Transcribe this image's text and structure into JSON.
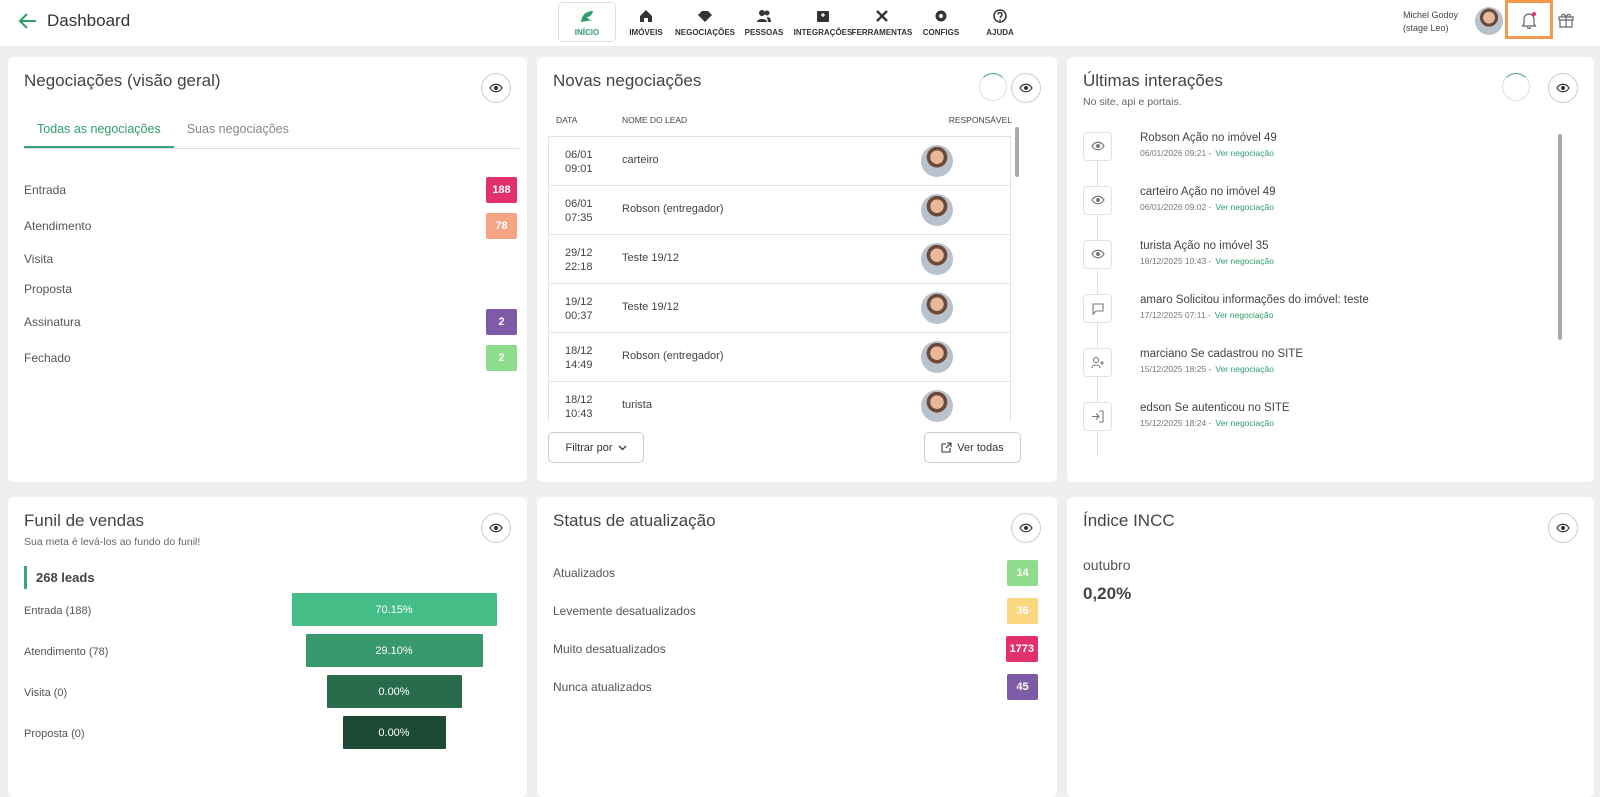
{
  "header": {
    "title": "Dashboard",
    "nav": [
      "INÍCIO",
      "IMÓVEIS",
      "NEGOCIAÇÕES",
      "PESSOAS",
      "INTEGRAÇÕES",
      "FERRAMENTAS",
      "CONFIGS",
      "AJUDA"
    ],
    "user_name": "Michel Godoy",
    "user_stage": "(stage Leo)"
  },
  "negotiations_overview": {
    "title": "Negociações (visão geral)",
    "tabs": [
      "Todas as negociações",
      "Suas negociações"
    ],
    "stages": [
      {
        "label": "Entrada",
        "count": 188,
        "color": "#e2306c"
      },
      {
        "label": "Atendimento",
        "count": 78,
        "color": "#f5a583"
      },
      {
        "label": "Visita"
      },
      {
        "label": "Proposta"
      },
      {
        "label": "Assinatura",
        "count": 2,
        "color": "#7d5ba6"
      },
      {
        "label": "Fechado",
        "count": 2,
        "color": "#8fdc8c"
      }
    ]
  },
  "new_negotiations": {
    "title": "Novas negociações",
    "columns": [
      "DATA",
      "NOME DO LEAD",
      "RESPONSÁVEL"
    ],
    "rows": [
      {
        "date": "06/01",
        "time": "09:01",
        "lead": "carteiro"
      },
      {
        "date": "06/01",
        "time": "07:35",
        "lead": "Robson (entregador)"
      },
      {
        "date": "29/12",
        "time": "22:18",
        "lead": "Teste 19/12"
      },
      {
        "date": "19/12",
        "time": "00:37",
        "lead": "Teste 19/12"
      },
      {
        "date": "18/12",
        "time": "14:49",
        "lead": "Robson (entregador)"
      },
      {
        "date": "18/12",
        "time": "10:43",
        "lead": "turista"
      }
    ],
    "filter_button": "Filtrar por",
    "see_all_button": "Ver todas"
  },
  "last_interactions": {
    "title": "Últimas interações",
    "subtitle": "No site, api e portais.",
    "items": [
      {
        "icon": "eye",
        "text": "Robson Ação no imóvel 49",
        "meta": "06/01/2026 09:21 -",
        "link": "Ver negociação"
      },
      {
        "icon": "eye",
        "text": "carteiro Ação no imóvel 49",
        "meta": "06/01/2026 09:02 -",
        "link": "Ver negociação"
      },
      {
        "icon": "eye",
        "text": "turista Ação no imóvel 35",
        "meta": "18/12/2025 10:43 -",
        "link": "Ver negociação"
      },
      {
        "icon": "chat",
        "text": "amaro Solicitou informações do imóvel: teste",
        "meta": "17/12/2025 07:11 -",
        "link": "Ver negociação"
      },
      {
        "icon": "user",
        "text": "marciano Se cadastrou no SITE",
        "meta": "15/12/2025 18:25 -",
        "link": "Ver negociação"
      },
      {
        "icon": "login",
        "text": "edson Se autenticou no SITE",
        "meta": "15/12/2025 18:24 -",
        "link": "Ver negociação"
      }
    ]
  },
  "sales_funnel": {
    "title": "Funil de vendas",
    "subtitle": "Sua meta é levá-los ao fundo do funil!",
    "total": "268 leads",
    "stages": [
      {
        "label": "Entrada (188)",
        "percent": "70.15%",
        "color": "#45bd87"
      },
      {
        "label": "Atendimento (78)",
        "percent": "29.10%",
        "color": "#37996c"
      },
      {
        "label": "Visita (0)",
        "percent": "0.00%",
        "color": "#286b4d"
      },
      {
        "label": "Proposta (0)",
        "percent": "0.00%",
        "color": "#1d4a35"
      }
    ]
  },
  "update_status": {
    "title": "Status de atualização",
    "rows": [
      {
        "label": "Atualizados",
        "count": 14,
        "color": "#8fdc8c"
      },
      {
        "label": "Levemente desatualizados",
        "count": 36,
        "color": "#fbd782"
      },
      {
        "label": "Muito desatualizados",
        "count": 1773,
        "color": "#e2306c"
      },
      {
        "label": "Nunca atualizados",
        "count": 45,
        "color": "#7d5ba6"
      }
    ]
  },
  "incc": {
    "title": "Índice INCC",
    "month": "outubro",
    "value": "0,20%"
  }
}
